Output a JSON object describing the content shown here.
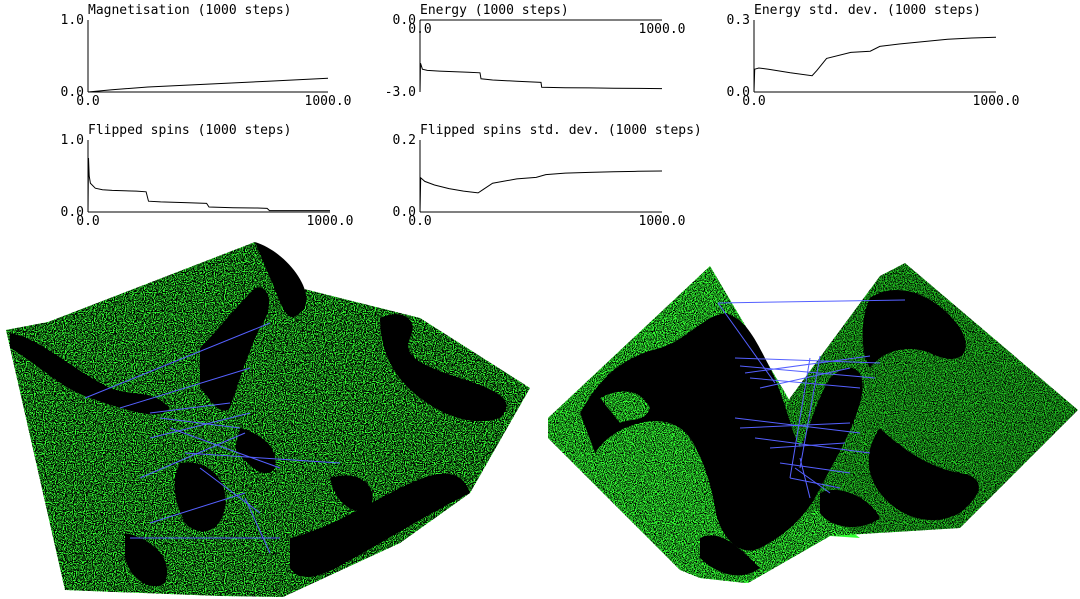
{
  "colors": {
    "background": "#ffffff",
    "axis": "#000000",
    "curve": "#000000",
    "spin_up": "#33ff33",
    "spin_up_shaded": "#22c722",
    "spin_down": "#000000",
    "bond_lines": "#5560ff"
  },
  "chart_data": [
    {
      "type": "line",
      "title": "Magnetisation (1000 steps)",
      "xlim": [
        0,
        1000
      ],
      "ylim": [
        0,
        1
      ],
      "xticks": [
        "0.0",
        "1000.0"
      ],
      "yticks": [
        "1.0",
        "0.0"
      ],
      "series": [
        {
          "x": [
            0,
            100,
            250,
            500,
            750,
            1000
          ],
          "y": [
            0.0,
            0.03,
            0.07,
            0.11,
            0.15,
            0.19
          ]
        }
      ]
    },
    {
      "type": "line",
      "title": "Energy (1000 steps)",
      "xlim": [
        0,
        1000
      ],
      "ylim": [
        -3,
        0
      ],
      "xticks": [
        "0.0",
        "1000.0"
      ],
      "yticks": [
        "0.0",
        "-3.0"
      ],
      "series": [
        {
          "x": [
            0,
            2,
            10,
            30,
            80,
            200,
            248,
            252,
            300,
            400,
            500,
            503,
            600,
            700,
            800,
            900,
            1000
          ],
          "y": [
            -3.0,
            -1.8,
            -2.05,
            -2.1,
            -2.13,
            -2.18,
            -2.2,
            -2.45,
            -2.5,
            -2.55,
            -2.6,
            -2.8,
            -2.82,
            -2.83,
            -2.84,
            -2.85,
            -2.86
          ]
        }
      ]
    },
    {
      "type": "line",
      "title": "Energy std. dev. (1000 steps)",
      "xlim": [
        0,
        1000
      ],
      "ylim": [
        0,
        0.3
      ],
      "xticks": [
        "0.0",
        "1000.0"
      ],
      "yticks": [
        "0.3",
        "0.0"
      ],
      "series": [
        {
          "x": [
            0,
            3,
            20,
            60,
            150,
            240,
            260,
            300,
            400,
            480,
            520,
            600,
            700,
            800,
            900,
            1000
          ],
          "y": [
            0.0,
            0.095,
            0.1,
            0.095,
            0.08,
            0.068,
            0.09,
            0.14,
            0.165,
            0.17,
            0.19,
            0.2,
            0.21,
            0.22,
            0.225,
            0.228
          ]
        }
      ]
    },
    {
      "type": "line",
      "title": "Flipped spins (1000 steps)",
      "xlim": [
        0,
        1000
      ],
      "ylim": [
        0,
        1
      ],
      "xticks": [
        "0.0",
        "1000.0"
      ],
      "yticks": [
        "1.0",
        "0.0"
      ],
      "series": [
        {
          "x": [
            0,
            2,
            5,
            10,
            30,
            60,
            100,
            200,
            240,
            250,
            300,
            400,
            490,
            500,
            600,
            700,
            740,
            750,
            800,
            900,
            1000
          ],
          "y": [
            0.0,
            0.75,
            0.5,
            0.4,
            0.33,
            0.31,
            0.3,
            0.29,
            0.28,
            0.15,
            0.14,
            0.13,
            0.12,
            0.07,
            0.06,
            0.055,
            0.05,
            0.02,
            0.02,
            0.02,
            0.02
          ]
        }
      ]
    },
    {
      "type": "line",
      "title": "Flipped spins std. dev. (1000 steps)",
      "xlim": [
        0,
        1000
      ],
      "ylim": [
        0,
        0.2
      ],
      "xticks": [
        "0.0",
        "1000.0"
      ],
      "yticks": [
        "0.2",
        "0.0"
      ],
      "series": [
        {
          "x": [
            0,
            3,
            20,
            60,
            120,
            180,
            240,
            260,
            300,
            400,
            480,
            520,
            600,
            700,
            800,
            900,
            1000
          ],
          "y": [
            0.0,
            0.095,
            0.085,
            0.075,
            0.065,
            0.058,
            0.053,
            0.062,
            0.08,
            0.092,
            0.096,
            0.104,
            0.108,
            0.11,
            0.112,
            0.113,
            0.114
          ]
        }
      ]
    }
  ],
  "visualizations": [
    {
      "name": "spin-lattice-3d-left"
    },
    {
      "name": "spin-lattice-3d-right"
    }
  ]
}
